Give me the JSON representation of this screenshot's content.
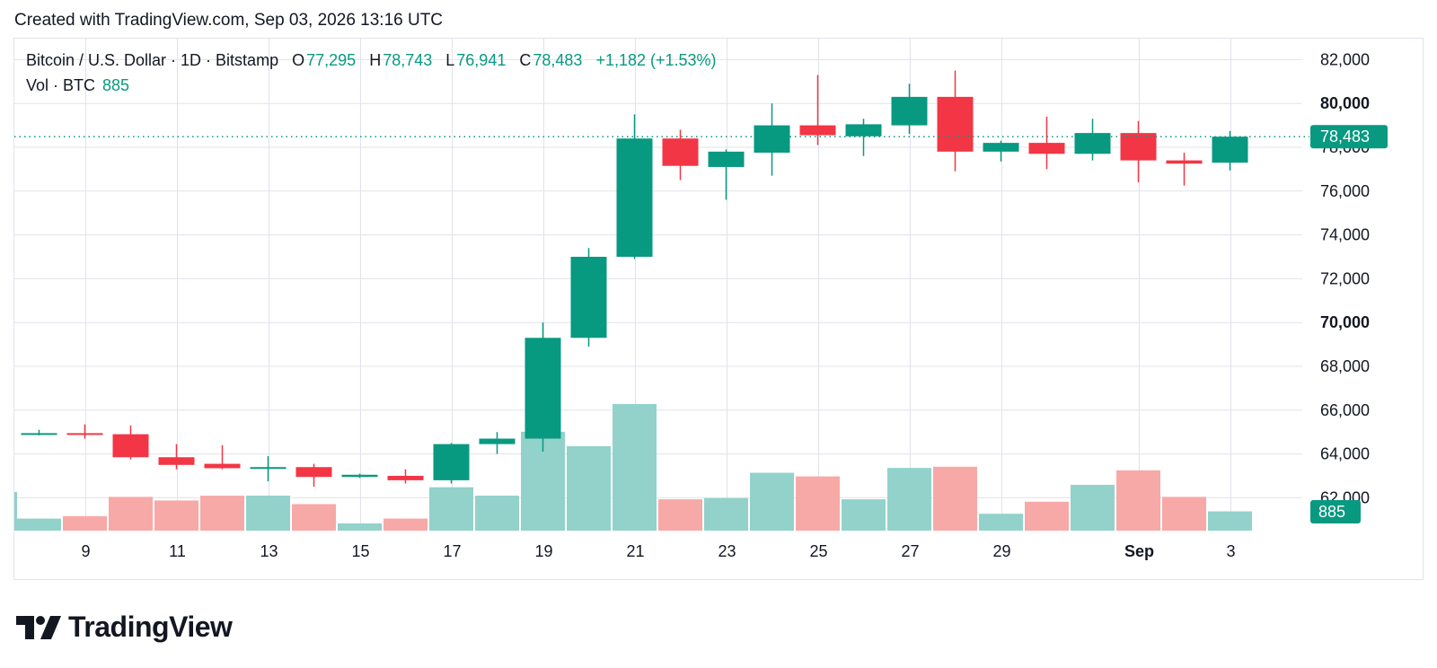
{
  "header": {
    "created": "Created with TradingView.com, Sep 03, 2026 13:16 UTC"
  },
  "legend": {
    "symbol": "Bitcoin / U.S. Dollar · 1D · Bitstamp",
    "o_label": "O",
    "o_value": "77,295",
    "h_label": "H",
    "h_value": "78,743",
    "l_label": "L",
    "l_value": "76,941",
    "c_label": "C",
    "c_value": "78,483",
    "change": "+1,182 (+1.53%)",
    "vol_label": "Vol · BTC",
    "vol_value": "885"
  },
  "price_tag": "78,483",
  "volume_tag": "885",
  "brand": "TradingView",
  "colors": {
    "up": "#089981",
    "down": "#f23645",
    "up_vol": "#92d2cb",
    "down_vol": "#f7a9a7",
    "grid": "#e0e3eb"
  },
  "chart_data": {
    "type": "candlestick",
    "y_axis": {
      "range": [
        60500,
        83000
      ],
      "ticks": [
        {
          "value": 62000,
          "label": "62,000"
        },
        {
          "value": 64000,
          "label": "64,000"
        },
        {
          "value": 66000,
          "label": "66,000"
        },
        {
          "value": 68000,
          "label": "68,000"
        },
        {
          "value": 70000,
          "label": "70,000",
          "bold": true
        },
        {
          "value": 72000,
          "label": "72,000"
        },
        {
          "value": 74000,
          "label": "74,000"
        },
        {
          "value": 76000,
          "label": "76,000"
        },
        {
          "value": 78000,
          "label": "78,000"
        },
        {
          "value": 80000,
          "label": "80,000",
          "bold": true
        },
        {
          "value": 82000,
          "label": "82,000"
        }
      ]
    },
    "x_axis": {
      "ticks": [
        {
          "index": 1,
          "label": "9"
        },
        {
          "index": 3,
          "label": "11"
        },
        {
          "index": 5,
          "label": "13"
        },
        {
          "index": 7,
          "label": "15"
        },
        {
          "index": 9,
          "label": "17"
        },
        {
          "index": 11,
          "label": "19"
        },
        {
          "index": 13,
          "label": "21"
        },
        {
          "index": 15,
          "label": "23"
        },
        {
          "index": 17,
          "label": "25"
        },
        {
          "index": 19,
          "label": "27"
        },
        {
          "index": 21,
          "label": "29"
        },
        {
          "index": 24,
          "label": "Sep",
          "bold": true
        },
        {
          "index": 26,
          "label": "3"
        }
      ]
    },
    "last_price": 78483,
    "candles": [
      {
        "o": 64900,
        "h": 65100,
        "l": 64850,
        "c": 64950,
        "vol": 1.0
      },
      {
        "o": 64950,
        "h": 65350,
        "l": 64700,
        "c": 64900,
        "vol": 1.2
      },
      {
        "o": 64900,
        "h": 65300,
        "l": 63750,
        "c": 63850,
        "vol": 2.8
      },
      {
        "o": 63850,
        "h": 64450,
        "l": 63300,
        "c": 63500,
        "vol": 2.5
      },
      {
        "o": 63550,
        "h": 64400,
        "l": 63300,
        "c": 63350,
        "vol": 2.9
      },
      {
        "o": 63350,
        "h": 63900,
        "l": 62750,
        "c": 63400,
        "vol": 2.9
      },
      {
        "o": 63400,
        "h": 63550,
        "l": 62500,
        "c": 62950,
        "vol": 2.2
      },
      {
        "o": 62950,
        "h": 63100,
        "l": 62900,
        "c": 63050,
        "vol": 0.6
      },
      {
        "o": 63000,
        "h": 63300,
        "l": 62650,
        "c": 62800,
        "vol": 1.0
      },
      {
        "o": 62800,
        "h": 64500,
        "l": 62650,
        "c": 64450,
        "vol": 3.6
      },
      {
        "o": 64450,
        "h": 65000,
        "l": 64000,
        "c": 64700,
        "vol": 2.9
      },
      {
        "o": 64700,
        "h": 70000,
        "l": 64100,
        "c": 69300,
        "vol": 8.2
      },
      {
        "o": 69300,
        "h": 73400,
        "l": 68900,
        "c": 73000,
        "vol": 7.0
      },
      {
        "o": 73000,
        "h": 79500,
        "l": 72900,
        "c": 78400,
        "vol": 10.5
      },
      {
        "o": 78400,
        "h": 78800,
        "l": 76500,
        "c": 77150,
        "vol": 2.6
      },
      {
        "o": 77100,
        "h": 77900,
        "l": 75600,
        "c": 77800,
        "vol": 2.7
      },
      {
        "o": 77750,
        "h": 80000,
        "l": 76700,
        "c": 79000,
        "vol": 4.8
      },
      {
        "o": 79000,
        "h": 81300,
        "l": 78100,
        "c": 78550,
        "vol": 4.5
      },
      {
        "o": 78500,
        "h": 79300,
        "l": 77600,
        "c": 79050,
        "vol": 2.6
      },
      {
        "o": 79000,
        "h": 80900,
        "l": 78600,
        "c": 80300,
        "vol": 5.2
      },
      {
        "o": 80300,
        "h": 81500,
        "l": 76900,
        "c": 77800,
        "vol": 5.3
      },
      {
        "o": 77800,
        "h": 78300,
        "l": 77350,
        "c": 78200,
        "vol": 1.4
      },
      {
        "o": 78200,
        "h": 79400,
        "l": 77000,
        "c": 77700,
        "vol": 2.4
      },
      {
        "o": 77700,
        "h": 79300,
        "l": 77400,
        "c": 78650,
        "vol": 3.8
      },
      {
        "o": 78650,
        "h": 79200,
        "l": 76400,
        "c": 77400,
        "vol": 5.0
      },
      {
        "o": 77400,
        "h": 77750,
        "l": 76250,
        "c": 77250,
        "vol": 2.8
      },
      {
        "o": 77295,
        "h": 78743,
        "l": 76941,
        "c": 78483,
        "vol": 1.6
      }
    ]
  }
}
